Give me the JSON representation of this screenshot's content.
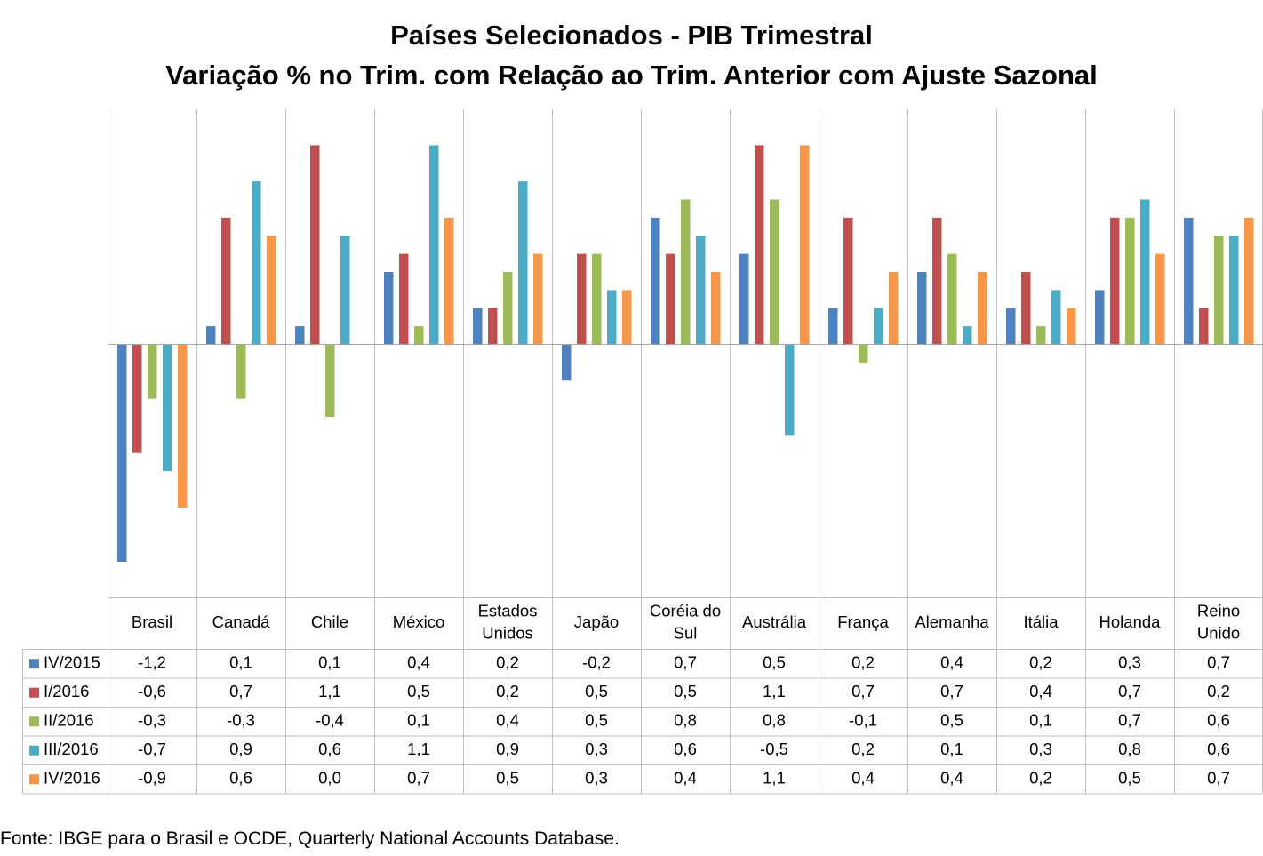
{
  "chart_data": {
    "type": "bar",
    "title": "Países Selecionados - PIB Trimestral",
    "subtitle": "Variação % no Trim. com Relação ao Trim. Anterior com Ajuste Sazonal",
    "categories": [
      [
        "Brasil"
      ],
      [
        "Canadá"
      ],
      [
        "Chile"
      ],
      [
        "México"
      ],
      [
        "Estados",
        "Unidos"
      ],
      [
        "Japão"
      ],
      [
        "Coréia do",
        "Sul"
      ],
      [
        "Austrália"
      ],
      [
        "França"
      ],
      [
        "Alemanha"
      ],
      [
        "Itália"
      ],
      [
        "Holanda"
      ],
      [
        "Reino",
        "Unido"
      ]
    ],
    "series": [
      {
        "name": "IV/2015",
        "color": "#4F81BD",
        "values": [
          -1.2,
          0.1,
          0.1,
          0.4,
          0.2,
          -0.2,
          0.7,
          0.5,
          0.2,
          0.4,
          0.2,
          0.3,
          0.7
        ],
        "labels": [
          "-1,2",
          "0,1",
          "0,1",
          "0,4",
          "0,2",
          "-0,2",
          "0,7",
          "0,5",
          "0,2",
          "0,4",
          "0,2",
          "0,3",
          "0,7"
        ]
      },
      {
        "name": "I/2016",
        "color": "#C0504D",
        "values": [
          -0.6,
          0.7,
          1.1,
          0.5,
          0.2,
          0.5,
          0.5,
          1.1,
          0.7,
          0.7,
          0.4,
          0.7,
          0.2
        ],
        "labels": [
          "-0,6",
          "0,7",
          "1,1",
          "0,5",
          "0,2",
          "0,5",
          "0,5",
          "1,1",
          "0,7",
          "0,7",
          "0,4",
          "0,7",
          "0,2"
        ]
      },
      {
        "name": "II/2016",
        "color": "#9BBB59",
        "values": [
          -0.3,
          -0.3,
          -0.4,
          0.1,
          0.4,
          0.5,
          0.8,
          0.8,
          -0.1,
          0.5,
          0.1,
          0.7,
          0.6
        ],
        "labels": [
          "-0,3",
          "-0,3",
          "-0,4",
          "0,1",
          "0,4",
          "0,5",
          "0,8",
          "0,8",
          "-0,1",
          "0,5",
          "0,1",
          "0,7",
          "0,6"
        ]
      },
      {
        "name": "III/2016",
        "color": "#4BACC6",
        "values": [
          -0.7,
          0.9,
          0.6,
          1.1,
          0.9,
          0.3,
          0.6,
          -0.5,
          0.2,
          0.1,
          0.3,
          0.8,
          0.6
        ],
        "labels": [
          "-0,7",
          "0,9",
          "0,6",
          "1,1",
          "0,9",
          "0,3",
          "0,6",
          "-0,5",
          "0,2",
          "0,1",
          "0,3",
          "0,8",
          "0,6"
        ]
      },
      {
        "name": "IV/2016",
        "color": "#F79646",
        "values": [
          -0.9,
          0.6,
          0.0,
          0.7,
          0.5,
          0.3,
          0.4,
          1.1,
          0.4,
          0.4,
          0.2,
          0.5,
          0.7
        ],
        "labels": [
          "-0,9",
          "0,6",
          "0,0",
          "0,7",
          "0,5",
          "0,3",
          "0,4",
          "1,1",
          "0,4",
          "0,4",
          "0,2",
          "0,5",
          "0,7"
        ]
      }
    ],
    "ylim": [
      -1.4,
      1.3
    ],
    "grid": "vertical",
    "legend": "data-table",
    "source": "Fonte: IBGE para o Brasil e OCDE, Quarterly National Accounts Database."
  }
}
